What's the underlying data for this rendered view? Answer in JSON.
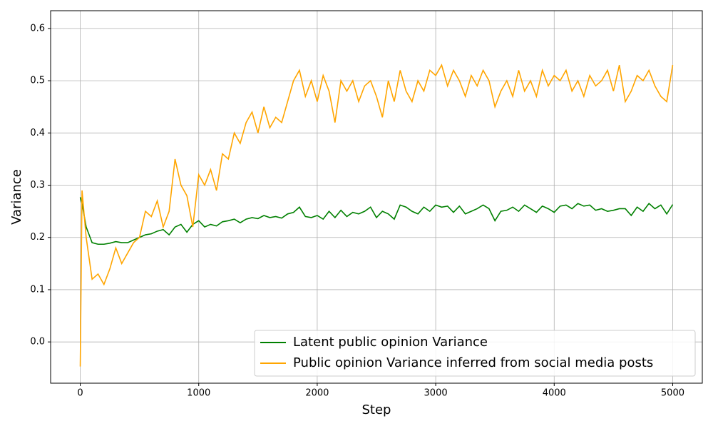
{
  "chart_data": {
    "type": "line",
    "xlabel": "Step",
    "ylabel": "Variance",
    "x": [
      0,
      15,
      50,
      100,
      150,
      200,
      250,
      300,
      350,
      400,
      450,
      500,
      550,
      600,
      650,
      700,
      750,
      800,
      850,
      900,
      950,
      1000,
      1050,
      1100,
      1150,
      1200,
      1250,
      1300,
      1350,
      1400,
      1450,
      1500,
      1550,
      1600,
      1650,
      1700,
      1750,
      1800,
      1850,
      1900,
      1950,
      2000,
      2050,
      2100,
      2150,
      2200,
      2250,
      2300,
      2350,
      2400,
      2450,
      2500,
      2550,
      2600,
      2650,
      2700,
      2750,
      2800,
      2850,
      2900,
      2950,
      3000,
      3050,
      3100,
      3150,
      3200,
      3250,
      3300,
      3350,
      3400,
      3450,
      3500,
      3550,
      3600,
      3650,
      3700,
      3750,
      3800,
      3850,
      3900,
      3950,
      4000,
      4050,
      4100,
      4150,
      4200,
      4250,
      4300,
      4350,
      4400,
      4450,
      4500,
      4550,
      4600,
      4650,
      4700,
      4750,
      4800,
      4850,
      4900,
      4950,
      5000
    ],
    "series": [
      {
        "name": "Latent public opinion Variance",
        "color": "#008000",
        "values": [
          0.277,
          0.265,
          0.22,
          0.19,
          0.187,
          0.187,
          0.189,
          0.192,
          0.19,
          0.19,
          0.195,
          0.2,
          0.205,
          0.207,
          0.212,
          0.215,
          0.205,
          0.22,
          0.225,
          0.21,
          0.225,
          0.232,
          0.22,
          0.225,
          0.222,
          0.23,
          0.232,
          0.235,
          0.228,
          0.235,
          0.238,
          0.236,
          0.242,
          0.238,
          0.24,
          0.237,
          0.245,
          0.248,
          0.258,
          0.24,
          0.238,
          0.242,
          0.235,
          0.25,
          0.238,
          0.252,
          0.24,
          0.248,
          0.245,
          0.25,
          0.258,
          0.238,
          0.25,
          0.245,
          0.235,
          0.262,
          0.258,
          0.25,
          0.245,
          0.258,
          0.25,
          0.262,
          0.258,
          0.26,
          0.248,
          0.26,
          0.245,
          0.25,
          0.255,
          0.262,
          0.255,
          0.232,
          0.25,
          0.252,
          0.258,
          0.25,
          0.262,
          0.255,
          0.248,
          0.26,
          0.255,
          0.248,
          0.26,
          0.262,
          0.255,
          0.265,
          0.26,
          0.262,
          0.252,
          0.255,
          0.25,
          0.252,
          0.255,
          0.255,
          0.242,
          0.258,
          0.25,
          0.265,
          0.255,
          0.262,
          0.245,
          0.263
        ]
      },
      {
        "name": "Public opinion Variance inferred from social media posts",
        "color": "#ffa500",
        "values": [
          -0.047,
          0.29,
          0.2,
          0.12,
          0.13,
          0.11,
          0.14,
          0.18,
          0.15,
          0.17,
          0.19,
          0.2,
          0.25,
          0.24,
          0.27,
          0.22,
          0.25,
          0.35,
          0.3,
          0.28,
          0.22,
          0.32,
          0.3,
          0.33,
          0.29,
          0.36,
          0.35,
          0.4,
          0.38,
          0.42,
          0.44,
          0.4,
          0.45,
          0.41,
          0.43,
          0.42,
          0.46,
          0.5,
          0.52,
          0.47,
          0.5,
          0.46,
          0.51,
          0.48,
          0.42,
          0.5,
          0.48,
          0.5,
          0.46,
          0.49,
          0.5,
          0.47,
          0.43,
          0.5,
          0.46,
          0.52,
          0.48,
          0.46,
          0.5,
          0.48,
          0.52,
          0.51,
          0.53,
          0.49,
          0.52,
          0.5,
          0.47,
          0.51,
          0.49,
          0.52,
          0.5,
          0.45,
          0.48,
          0.5,
          0.47,
          0.52,
          0.48,
          0.5,
          0.47,
          0.52,
          0.49,
          0.51,
          0.5,
          0.52,
          0.48,
          0.5,
          0.47,
          0.51,
          0.49,
          0.5,
          0.52,
          0.48,
          0.53,
          0.46,
          0.48,
          0.51,
          0.5,
          0.52,
          0.49,
          0.47,
          0.46,
          0.53
        ]
      }
    ],
    "xlim": [
      -250,
      5250
    ],
    "xticks": [
      0,
      1000,
      2000,
      3000,
      4000,
      5000
    ],
    "ylim": [
      -0.079,
      0.634
    ],
    "yticks": [
      {
        "value": 0,
        "label": "0.0"
      },
      0.1,
      0.2,
      0.3,
      0.4,
      0.5,
      0.6
    ],
    "grid": true,
    "legend": "lower right"
  }
}
